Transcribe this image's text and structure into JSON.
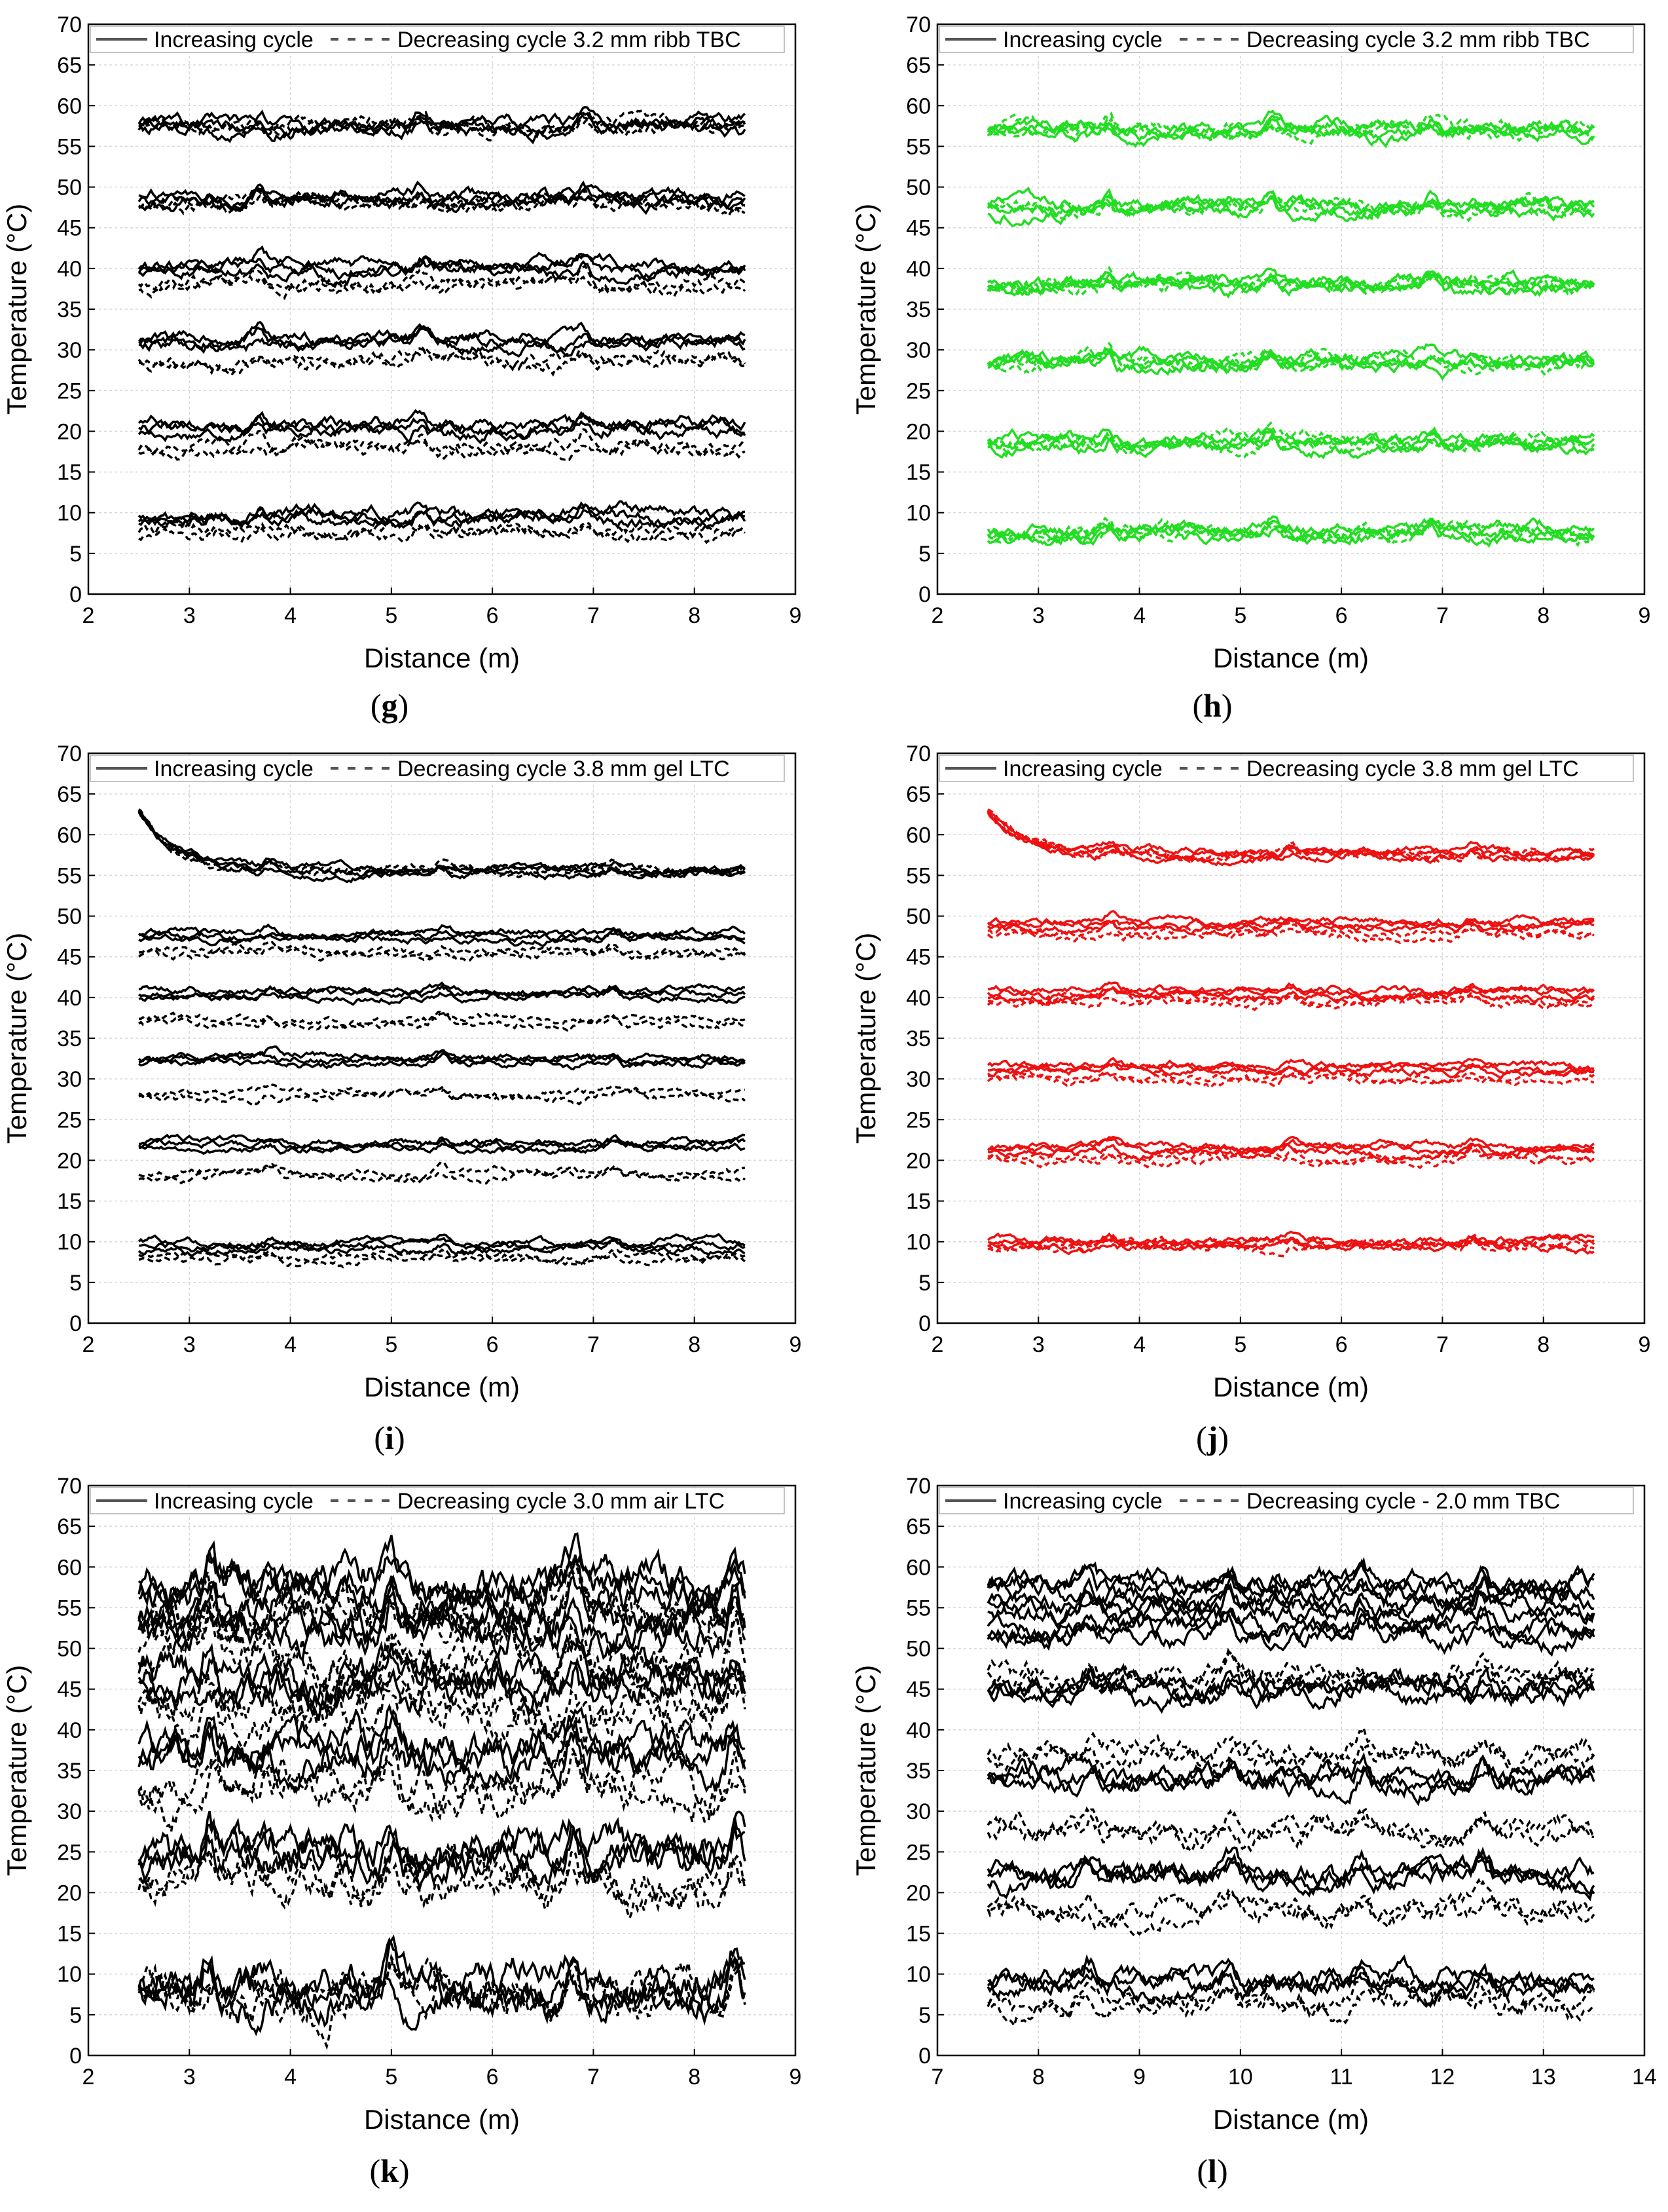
{
  "figure": {
    "panels": [
      {
        "letter": "g",
        "title_series_label": "3.2 mm ribb TBC",
        "legend": {
          "increasing": "Increasing cycle",
          "decreasing": "Decreasing cycle"
        },
        "color": "#000000"
      },
      {
        "letter": "h",
        "title_series_label": "3.2 mm ribb TBC",
        "legend": {
          "increasing": "Increasing cycle",
          "decreasing": "Decreasing cycle"
        },
        "color": "#22dd22"
      },
      {
        "letter": "i",
        "title_series_label": "3.8 mm gel LTC",
        "legend": {
          "increasing": "Increasing cycle",
          "decreasing": "Decreasing cycle"
        },
        "color": "#000000"
      },
      {
        "letter": "j",
        "title_series_label": "3.8 mm gel LTC",
        "legend": {
          "increasing": "Increasing cycle",
          "decreasing": "Decreasing cycle"
        },
        "color": "#ee1111"
      },
      {
        "letter": "k",
        "title_series_label": "3.0 mm air LTC",
        "legend": {
          "increasing": "Increasing cycle",
          "decreasing": "Decreasing cycle"
        },
        "color": "#000000"
      },
      {
        "letter": "l",
        "title_series_label": "- 2.0 mm TBC",
        "legend": {
          "increasing": "Increasing cycle",
          "decreasing": "Decreasing cycle"
        },
        "color": "#000000"
      }
    ]
  },
  "chart_data": [
    {
      "type": "line",
      "id": "g",
      "xlabel": "Distance (m)",
      "ylabel": "Temperature (°C)",
      "xlim": [
        2,
        9
      ],
      "ylim": [
        0,
        70
      ],
      "xticks": [
        2,
        3,
        4,
        5,
        6,
        7,
        8,
        9
      ],
      "yticks": [
        0,
        5,
        10,
        15,
        20,
        25,
        30,
        35,
        40,
        45,
        50,
        55,
        60,
        65,
        70
      ],
      "legend": [
        "Increasing cycle",
        "Decreasing cycle 3.2 mm ribb TBC"
      ],
      "x_range": [
        2.5,
        8.5
      ],
      "increasing_levels": [
        9.5,
        20.5,
        31,
        40,
        48.5,
        57.5
      ],
      "decreasing_levels": [
        7.5,
        18,
        28.5,
        38,
        48,
        57.5
      ],
      "noise": 1.0,
      "bumps": [
        3.7,
        5.3,
        6.9
      ]
    },
    {
      "type": "line",
      "id": "h",
      "xlabel": "Distance (m)",
      "ylabel": "Temperature (°C)",
      "xlim": [
        2,
        9
      ],
      "ylim": [
        0,
        70
      ],
      "xticks": [
        2,
        3,
        4,
        5,
        6,
        7,
        8,
        9
      ],
      "yticks": [
        0,
        5,
        10,
        15,
        20,
        25,
        30,
        35,
        40,
        45,
        50,
        55,
        60,
        65,
        70
      ],
      "legend": [
        "Increasing cycle",
        "Decreasing cycle 3.2 mm ribb TBC"
      ],
      "x_range": [
        2.5,
        8.5
      ],
      "increasing_levels": [
        7.5,
        18.5,
        28.5,
        38,
        47.5,
        57
      ],
      "decreasing_levels": [
        7.5,
        18.5,
        28.5,
        38,
        47.5,
        57
      ],
      "noise": 1.0,
      "bumps": [
        3.7,
        5.3,
        6.9
      ]
    },
    {
      "type": "line",
      "id": "i",
      "xlabel": "Distance (m)",
      "ylabel": "Temperature (°C)",
      "xlim": [
        2,
        9
      ],
      "ylim": [
        0,
        70
      ],
      "xticks": [
        2,
        3,
        4,
        5,
        6,
        7,
        8,
        9
      ],
      "yticks": [
        0,
        5,
        10,
        15,
        20,
        25,
        30,
        35,
        40,
        45,
        50,
        55,
        60,
        65,
        70
      ],
      "legend": [
        "Increasing cycle",
        "Decreasing cycle 3.8 mm gel LTC"
      ],
      "x_range": [
        2.5,
        8.5
      ],
      "increasing_levels": [
        9.5,
        21.8,
        32.3,
        40.5,
        47.5,
        55.5
      ],
      "decreasing_levels": [
        8,
        18.2,
        28,
        37,
        45.5,
        55.5
      ],
      "noise": 0.6,
      "bumps": [
        3.8,
        5.5,
        7.2
      ],
      "start_spike": 63
    },
    {
      "type": "line",
      "id": "j",
      "xlabel": "Distance (m)",
      "ylabel": "Temperature (°C)",
      "xlim": [
        2,
        9
      ],
      "ylim": [
        0,
        70
      ],
      "xticks": [
        2,
        3,
        4,
        5,
        6,
        7,
        8,
        9
      ],
      "yticks": [
        0,
        5,
        10,
        15,
        20,
        25,
        30,
        35,
        40,
        45,
        50,
        55,
        60,
        65,
        70
      ],
      "legend": [
        "Increasing cycle",
        "Decreasing cycle 3.8 mm gel LTC"
      ],
      "x_range": [
        2.5,
        8.5
      ],
      "increasing_levels": [
        9.8,
        21.3,
        31.3,
        40.5,
        49,
        57.5
      ],
      "decreasing_levels": [
        9.5,
        20.2,
        30,
        39.5,
        47.8,
        57.5
      ],
      "noise": 0.6,
      "bumps": [
        3.7,
        5.5,
        7.3
      ],
      "start_spike": 63
    },
    {
      "type": "line",
      "id": "k",
      "xlabel": "Distance (m)",
      "ylabel": "Temperature (°C)",
      "xlim": [
        2,
        9
      ],
      "ylim": [
        0,
        70
      ],
      "xticks": [
        2,
        3,
        4,
        5,
        6,
        7,
        8,
        9
      ],
      "yticks": [
        0,
        5,
        10,
        15,
        20,
        25,
        30,
        35,
        40,
        45,
        50,
        55,
        60,
        65,
        70
      ],
      "legend": [
        "Increasing cycle",
        "Decreasing cycle 3.0 mm air LTC"
      ],
      "x_range": [
        2.5,
        8.5
      ],
      "increasing_levels": [
        8,
        24.5,
        37,
        46,
        53,
        57.5
      ],
      "decreasing_levels": [
        7,
        21,
        33,
        42,
        49,
        54
      ],
      "noise": 3.0,
      "bumps": [
        3.2,
        5.0,
        6.8,
        8.4
      ]
    },
    {
      "type": "line",
      "id": "l",
      "xlabel": "Distance (m)",
      "ylabel": "Temperature (°C)",
      "xlim": [
        7,
        14
      ],
      "ylim": [
        0,
        70
      ],
      "xticks": [
        7,
        8,
        9,
        10,
        11,
        12,
        13,
        14
      ],
      "yticks": [
        0,
        5,
        10,
        15,
        20,
        25,
        30,
        35,
        40,
        45,
        50,
        55,
        60,
        65,
        70
      ],
      "legend": [
        "Increasing cycle",
        "Decreasing cycle - 2.0 mm TBC"
      ],
      "x_range": [
        7.5,
        13.5
      ],
      "increasing_levels": [
        9,
        22,
        34,
        45,
        52,
        55,
        57.5
      ],
      "decreasing_levels": [
        6.5,
        17.5,
        27.5,
        37,
        46.5
      ],
      "noise": 1.6,
      "bumps": [
        8.5,
        9.9,
        11.2,
        12.4
      ]
    }
  ]
}
